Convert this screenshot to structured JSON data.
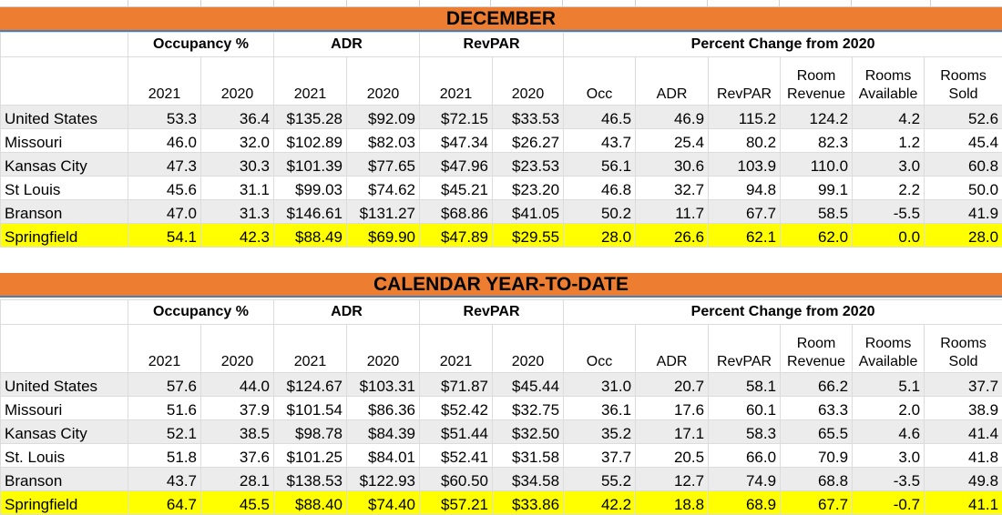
{
  "sections": [
    {
      "title": "DECEMBER",
      "groups": [
        "Occupancy %",
        "ADR",
        "RevPAR",
        "Percent Change from 2020"
      ],
      "columns": [
        "2021",
        "2020",
        "2021",
        "2020",
        "2021",
        "2020",
        "Occ",
        "ADR",
        "RevPAR",
        "Room Revenue",
        "Rooms Available",
        "Rooms Sold"
      ],
      "rows": [
        {
          "label": "United States",
          "values": [
            "53.3",
            "36.4",
            "$135.28",
            "$92.09",
            "$72.15",
            "$33.53",
            "46.5",
            "46.9",
            "115.2",
            "124.2",
            "4.2",
            "52.6"
          ]
        },
        {
          "label": "Missouri",
          "values": [
            "46.0",
            "32.0",
            "$102.89",
            "$82.03",
            "$47.34",
            "$26.27",
            "43.7",
            "25.4",
            "80.2",
            "82.3",
            "1.2",
            "45.4"
          ]
        },
        {
          "label": "Kansas City",
          "values": [
            "47.3",
            "30.3",
            "$101.39",
            "$77.65",
            "$47.96",
            "$23.53",
            "56.1",
            "30.6",
            "103.9",
            "110.0",
            "3.0",
            "60.8"
          ]
        },
        {
          "label": "St Louis",
          "values": [
            "45.6",
            "31.1",
            "$99.03",
            "$74.62",
            "$45.21",
            "$23.20",
            "46.8",
            "32.7",
            "94.8",
            "99.1",
            "2.2",
            "50.0"
          ]
        },
        {
          "label": "Branson",
          "values": [
            "47.0",
            "31.3",
            "$146.61",
            "$131.27",
            "$68.86",
            "$41.05",
            "50.2",
            "11.7",
            "67.7",
            "58.5",
            "-5.5",
            "41.9"
          ]
        },
        {
          "label": "Springfield",
          "values": [
            "54.1",
            "42.3",
            "$88.49",
            "$69.90",
            "$47.89",
            "$29.55",
            "28.0",
            "26.6",
            "62.1",
            "62.0",
            "0.0",
            "28.0"
          ]
        }
      ]
    },
    {
      "title": "CALENDAR YEAR-TO-DATE",
      "groups": [
        "Occupancy %",
        "ADR",
        "RevPAR",
        "Percent Change from 2020"
      ],
      "columns": [
        "2021",
        "2020",
        "2021",
        "2020",
        "2021",
        "2020",
        "Occ",
        "ADR",
        "RevPAR",
        "Room Revenue",
        "Rooms Available",
        "Rooms Sold"
      ],
      "rows": [
        {
          "label": "United States",
          "values": [
            "57.6",
            "44.0",
            "$124.67",
            "$103.31",
            "$71.87",
            "$45.44",
            "31.0",
            "20.7",
            "58.1",
            "66.2",
            "5.1",
            "37.7"
          ]
        },
        {
          "label": "Missouri",
          "values": [
            "51.6",
            "37.9",
            "$101.54",
            "$86.36",
            "$52.42",
            "$32.75",
            "36.1",
            "17.6",
            "60.1",
            "63.3",
            "2.0",
            "38.9"
          ]
        },
        {
          "label": "Kansas City",
          "values": [
            "52.1",
            "38.5",
            "$98.78",
            "$84.39",
            "$51.44",
            "$32.50",
            "35.2",
            "17.1",
            "58.3",
            "65.5",
            "4.6",
            "41.4"
          ]
        },
        {
          "label": "St. Louis",
          "values": [
            "51.8",
            "37.6",
            "$101.25",
            "$84.01",
            "$52.41",
            "$31.58",
            "37.7",
            "20.5",
            "66.0",
            "70.9",
            "3.0",
            "41.8"
          ]
        },
        {
          "label": "Branson",
          "values": [
            "43.7",
            "28.1",
            "$138.53",
            "$122.93",
            "$60.50",
            "$34.58",
            "55.2",
            "12.7",
            "74.9",
            "68.8",
            "-3.5",
            "49.8"
          ]
        },
        {
          "label": "Springfield",
          "values": [
            "64.7",
            "45.5",
            "$88.40",
            "$74.40",
            "$57.21",
            "$33.86",
            "42.2",
            "18.8",
            "68.9",
            "67.7",
            "-0.7",
            "41.1"
          ]
        }
      ]
    }
  ],
  "colors": {
    "banner": "#ed7d31",
    "highlight": "#ffff00",
    "stripe": "#ececec"
  }
}
